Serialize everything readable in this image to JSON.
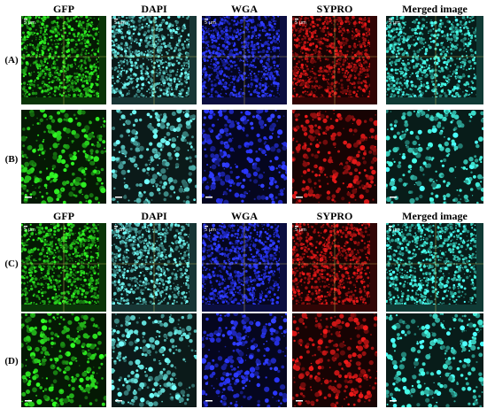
{
  "columns": [
    {
      "title": "GFP",
      "color": "#28d21e"
    },
    {
      "title": "DAPI",
      "color": "#5fd7d2"
    },
    {
      "title": "WGA",
      "color": "#2a36ff"
    },
    {
      "title": "SYPRO",
      "color": "#c21515"
    },
    {
      "title": "Merged image",
      "color": "#3fe6d3"
    }
  ],
  "rows": [
    {
      "label": "(A)",
      "view": "orthogonal"
    },
    {
      "label": "(B)",
      "view": "zoom"
    },
    {
      "label": "(C)",
      "view": "orthogonal"
    },
    {
      "label": "(D)",
      "view": "zoom"
    }
  ],
  "scale_bar_text": "5 µm"
}
